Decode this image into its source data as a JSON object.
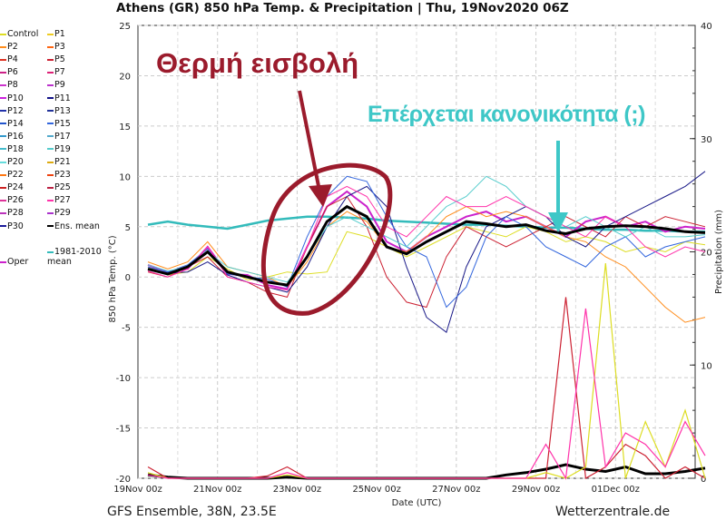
{
  "chart_data": {
    "type": "line",
    "title": "Athens  (GR)  850 hPa Temp. & Precipitation | Thu, 19Nov2020 06Z",
    "xlabel": "Date (UTC)",
    "ylabel": "850 hPa Temp. (°C)",
    "y2label": "Precipitation (mm)",
    "ylim": [
      -20,
      25
    ],
    "y2lim": [
      0,
      40
    ],
    "yticks": [
      "25",
      "20",
      "15",
      "10",
      "5",
      "0",
      "-5",
      "-10",
      "-15",
      "-20"
    ],
    "y2ticks": [
      "40",
      "30",
      "20",
      "10",
      "0"
    ],
    "xticks": [
      "19Nov 00z",
      "21Nov 00z",
      "23Nov 00z",
      "25Nov 00z",
      "27Nov 00z",
      "29Nov 00z",
      "01Dec 00z"
    ],
    "x_days_step": 0.5,
    "x_days_start": 0.25,
    "series": [
      {
        "name": "Ens. mean",
        "color": "#000000",
        "values": [
          0.8,
          0.3,
          1.0,
          2.5,
          0.5,
          0,
          -0.5,
          -0.8,
          2,
          5.5,
          7,
          6,
          3,
          2.3,
          3.5,
          4.5,
          5.5,
          5.3,
          5.0,
          5.2,
          4.6,
          4.3,
          4.8,
          5.0,
          5.1,
          5.0,
          4.8,
          4.5,
          4.4
        ]
      },
      {
        "name": "1981-2010 mean",
        "color": "#33bbbb",
        "values": [
          5.2,
          5.5,
          5.2,
          5.0,
          4.8,
          5.2,
          5.6,
          5.8,
          6.0,
          6.0,
          5.9,
          5.8,
          5.6,
          5.5,
          5.4,
          5.3,
          5.2,
          5.2,
          5.1,
          5.0,
          4.9,
          4.9,
          4.8,
          4.7,
          4.7,
          4.6,
          4.6,
          4.5,
          4.5
        ]
      },
      {
        "name": "Oper",
        "color": "#cc22cc",
        "values": [
          1.2,
          0.5,
          0.8,
          3,
          0.3,
          0.2,
          -0.8,
          -1.2,
          3,
          7,
          8.5,
          7,
          3.5,
          2.5,
          4,
          5,
          6,
          6.5,
          5.5,
          6,
          5,
          4,
          5.5,
          6,
          5,
          5.5,
          4.5,
          5,
          4.8
        ]
      },
      {
        "name": "Control",
        "color": "#dddd22",
        "values": [
          1,
          0.2,
          0.5,
          2,
          0.8,
          -0.3,
          0,
          0.5,
          0.3,
          0.5,
          4.5,
          4,
          3,
          2,
          3,
          4,
          5,
          4.5,
          4,
          5,
          4.5,
          3.5,
          4,
          3.5,
          2.5,
          3,
          2.5,
          3.5,
          3.2
        ]
      },
      {
        "name": "P2",
        "color": "#ff8c1a",
        "values": [
          1.5,
          0.8,
          1.5,
          3.5,
          1,
          0.5,
          0,
          -1,
          1.5,
          5,
          6.5,
          5.5,
          3,
          2.5,
          4,
          6,
          7,
          6,
          6.5,
          6,
          5,
          4,
          3.5,
          2,
          1,
          -1,
          -3,
          -4.5,
          -4
        ]
      },
      {
        "name": "P5",
        "color": "#cc2233",
        "values": [
          0.5,
          0,
          1,
          2,
          0,
          -0.5,
          -1.5,
          -2,
          3,
          7,
          8,
          5,
          0,
          -2.5,
          -3,
          2,
          5,
          4,
          3,
          4,
          5,
          6,
          5,
          4,
          6,
          5,
          6,
          5.5,
          5
        ]
      },
      {
        "name": "P11",
        "color": "#1a1a88",
        "values": [
          0.8,
          0.4,
          0.5,
          1.5,
          0.2,
          -0.5,
          -1,
          -1.5,
          1,
          5,
          8,
          9,
          7,
          1,
          -4,
          -5.5,
          1,
          5,
          6,
          7,
          6,
          4,
          3,
          5,
          6,
          7,
          8,
          9,
          10.5
        ]
      },
      {
        "name": "P15",
        "color": "#3366dd",
        "values": [
          1,
          0.5,
          1.2,
          2.8,
          0.3,
          0,
          -0.2,
          -1,
          4,
          8,
          10,
          9.5,
          6,
          3,
          2,
          -3,
          -1,
          4,
          6,
          5,
          3,
          2,
          1,
          3,
          4,
          2,
          3,
          3.5,
          4
        ]
      },
      {
        "name": "P19",
        "color": "#55cccc",
        "values": [
          1.2,
          0.6,
          1,
          2.5,
          1,
          0.5,
          0,
          -0.5,
          2,
          5,
          6,
          5,
          4,
          3,
          5,
          7,
          8,
          10,
          9,
          7,
          6,
          5,
          6,
          5,
          4,
          5,
          4,
          4,
          4.2
        ]
      },
      {
        "name": "P26",
        "color": "#ff33aa",
        "values": [
          0.6,
          0,
          0.8,
          3,
          0,
          -0.5,
          -1,
          -1.3,
          3,
          8,
          9,
          8,
          5,
          4,
          6,
          8,
          7,
          7,
          8,
          7,
          6,
          5,
          4,
          6,
          5,
          3,
          2,
          3,
          2.5
        ]
      }
    ],
    "precip_series": [
      {
        "name": "Ens. mean",
        "color": "#000000",
        "values": [
          0.3,
          0.1,
          0,
          0,
          0,
          0,
          0,
          0.1,
          0,
          0,
          0,
          0,
          0,
          0,
          0,
          0,
          0,
          0,
          0.3,
          0.5,
          0.8,
          1.2,
          0.8,
          0.6,
          1,
          0.4,
          0.4,
          0.6,
          0.9
        ]
      },
      {
        "name": "P5",
        "color": "#cc2233",
        "values": [
          1,
          0,
          0,
          0,
          0,
          0,
          0.2,
          1,
          0,
          0,
          0,
          0,
          0,
          0,
          0,
          0,
          0,
          0,
          0,
          0,
          0,
          16,
          0,
          1,
          3,
          2,
          0,
          1,
          0
        ]
      },
      {
        "name": "Control",
        "color": "#dddd22",
        "values": [
          0.5,
          0,
          0,
          0,
          0,
          0,
          0,
          0.3,
          0,
          0,
          0,
          0,
          0,
          0,
          0,
          0,
          0,
          0,
          0,
          0,
          0.5,
          0,
          1,
          19,
          0,
          5,
          1,
          6,
          0
        ]
      },
      {
        "name": "P26",
        "color": "#ff33aa",
        "values": [
          0.3,
          0,
          0,
          0,
          0,
          0,
          0,
          0.5,
          0,
          0,
          0,
          0,
          0,
          0,
          0,
          0,
          0,
          0,
          0,
          0,
          3,
          0,
          15,
          1,
          4,
          3,
          1,
          5,
          2
        ]
      }
    ]
  },
  "legend": {
    "col1": [
      "Control",
      "P2",
      "P4",
      "P6",
      "P8",
      "P10",
      "P12",
      "P14",
      "P16",
      "P18",
      "P20",
      "P22",
      "P24",
      "P26",
      "P28",
      "P30"
    ],
    "col2": [
      "P1",
      "P3",
      "P5",
      "P7",
      "P9",
      "P11",
      "P13",
      "P15",
      "P17",
      "P19",
      "P21",
      "P23",
      "P25",
      "P27",
      "P29",
      "Ens. mean"
    ],
    "col1_colors": [
      "#dddd22",
      "#ff8c1a",
      "#dd3322",
      "#cc2288",
      "#cc33cc",
      "#cc22dd",
      "#2233aa",
      "#2255cc",
      "#3399cc",
      "#44bbcc",
      "#66dddd",
      "#ff7711",
      "#cc2222",
      "#dd3399",
      "#bb33bb",
      "#1a1a99"
    ],
    "col2_colors": [
      "#eecc22",
      "#ff6611",
      "#cc2233",
      "#dd2277",
      "#bb33cc",
      "#111188",
      "#223399",
      "#3366dd",
      "#55aacc",
      "#55cccc",
      "#ddaa11",
      "#ee4411",
      "#bb2244",
      "#ff33aa",
      "#aa33cc",
      "#000000"
    ],
    "clim": "1981-2010 mean",
    "clim_color": "#33bbbb",
    "oper": "Oper",
    "oper_color": "#cc22cc"
  },
  "annotations": {
    "warm": "Θερμή εισβολή",
    "normal": "Επέρχεται κανονικότητα (;)",
    "warm_color": "#9b1b2c",
    "normal_color": "#3ec7c7"
  },
  "footer": {
    "left": "GFS Ensemble, 38N, 23.5E",
    "right": "Wetterzentrale.de"
  }
}
